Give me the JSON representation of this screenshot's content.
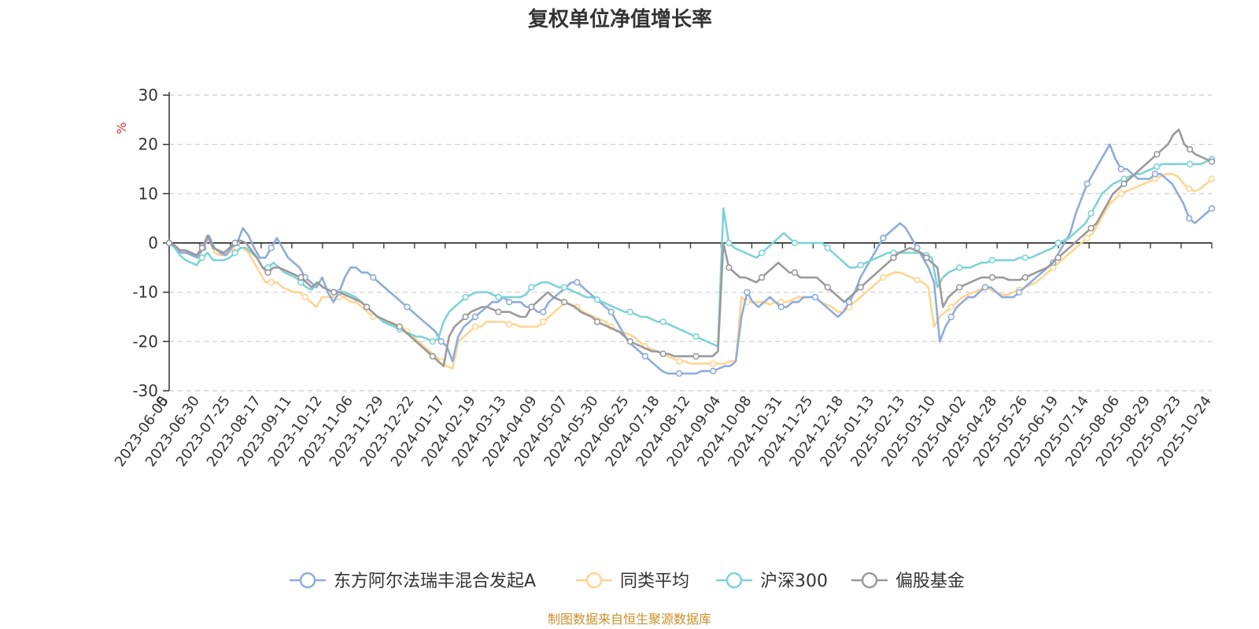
{
  "chart_data": {
    "type": "line",
    "title": "复权单位净值增长率",
    "ylabel": "%",
    "ylim": [
      -30,
      30
    ],
    "yticks": [
      "30",
      "20",
      "10",
      "0",
      "-10",
      "-20",
      "-30"
    ],
    "x_start_label": "0",
    "x_tick_labels": [
      "2023-06-05",
      "2023-06-30",
      "2023-07-25",
      "2023-08-17",
      "2023-09-11",
      "2023-10-12",
      "2023-11-06",
      "2023-11-29",
      "2023-12-22",
      "2024-01-17",
      "2024-02-19",
      "2024-03-13",
      "2024-04-09",
      "2024-05-07",
      "2024-05-30",
      "2024-06-25",
      "2024-07-18",
      "2024-08-12",
      "2024-09-04",
      "2024-10-08",
      "2024-10-31",
      "2024-11-25",
      "2024-12-18",
      "2025-01-13",
      "2025-02-13",
      "2025-03-10",
      "2025-04-02",
      "2025-04-28",
      "2025-05-26",
      "2025-06-19",
      "2025-07-14",
      "2025-08-06",
      "2025-08-29",
      "2025-09-23",
      "2025-10-24"
    ],
    "source": "制图数据来自恒生聚源数据库",
    "series": [
      {
        "name": "东方阿尔法瑞丰混合发起A",
        "color": "#8eacdb",
        "values": [
          0,
          -1,
          -2,
          -2,
          -2.5,
          -3,
          -1,
          1.5,
          -1,
          -2,
          -2.5,
          -1,
          0,
          3,
          1.5,
          -1,
          -3,
          -3,
          -1,
          1,
          -1,
          -3,
          -4,
          -5,
          -7,
          -8,
          -9,
          -7,
          -10,
          -12,
          -10,
          -7,
          -5,
          -5,
          -6,
          -6,
          -7,
          -8,
          -9,
          -10,
          -11,
          -12,
          -13,
          -14,
          -15,
          -16,
          -17,
          -18,
          -20,
          -21,
          -24,
          -19,
          -17,
          -16,
          -15,
          -14,
          -13,
          -12,
          -12,
          -11,
          -12,
          -12,
          -12,
          -13,
          -13,
          -14,
          -14,
          -12,
          -11,
          -10,
          -9,
          -8,
          -8,
          -9,
          -10,
          -11,
          -12,
          -13,
          -14,
          -16,
          -18,
          -20,
          -21,
          -22,
          -23,
          -24,
          -25,
          -26,
          -26.5,
          -26.5,
          -26.5,
          -26.5,
          -26.5,
          -26.5,
          -26,
          -26,
          -26,
          -25.5,
          -25,
          -25,
          -24,
          -15,
          -10,
          -12,
          -13,
          -12,
          -11,
          -12,
          -13,
          -13,
          -12,
          -12,
          -11,
          -11,
          -11,
          -12,
          -13,
          -14,
          -15,
          -14,
          -12,
          -10,
          -7,
          -5,
          -3,
          -1,
          1,
          2,
          3,
          4,
          3,
          1,
          -1,
          -3,
          -5,
          -8,
          -20,
          -17,
          -15,
          -13,
          -12,
          -11,
          -11,
          -10,
          -9,
          -9,
          -10,
          -11,
          -11,
          -11,
          -10,
          -9,
          -8,
          -7,
          -6,
          -5,
          -4,
          -2,
          0,
          2,
          6,
          9,
          12,
          14,
          16,
          18,
          20,
          17,
          15,
          15,
          14,
          13,
          13,
          13,
          14,
          14,
          13,
          12,
          10,
          8,
          5,
          4,
          5,
          6,
          7
        ]
      },
      {
        "name": "同类平均",
        "color": "#ffd591",
        "values": [
          0,
          -1,
          -2,
          -2,
          -2.5,
          -2.5,
          -1,
          1,
          -2,
          -2.5,
          -2.5,
          -1.5,
          -1,
          -1,
          -2,
          -4,
          -6,
          -8,
          -8,
          -8,
          -9,
          -9.5,
          -10,
          -10,
          -11,
          -12,
          -13,
          -11,
          -11,
          -11,
          -11,
          -11,
          -12,
          -12,
          -13,
          -14,
          -15,
          -15,
          -16,
          -16,
          -16.5,
          -17,
          -18,
          -19,
          -20,
          -21,
          -22,
          -23,
          -24,
          -25,
          -25.5,
          -20,
          -19,
          -18,
          -17,
          -17,
          -16,
          -16,
          -16,
          -16,
          -16.5,
          -16.5,
          -17,
          -17,
          -17,
          -17,
          -16,
          -15,
          -14,
          -13,
          -12,
          -12.5,
          -13,
          -14,
          -14.5,
          -15,
          -15.5,
          -16,
          -17,
          -18,
          -18,
          -18.5,
          -19,
          -20,
          -21,
          -21.5,
          -22,
          -22.5,
          -23,
          -23.5,
          -24,
          -24,
          -24.5,
          -24.5,
          -24.5,
          -24.5,
          -24.5,
          -24.5,
          -24.5,
          -24,
          -24,
          -11,
          -12,
          -12,
          -12,
          -12,
          -12.5,
          -12,
          -12,
          -12,
          -11.5,
          -11,
          -11,
          -11,
          -11,
          -12,
          -12.5,
          -13,
          -14,
          -14,
          -13,
          -12,
          -11,
          -10,
          -9,
          -8,
          -7,
          -6.5,
          -6,
          -6,
          -6.5,
          -7,
          -7.5,
          -8,
          -9,
          -17,
          -15,
          -14,
          -13,
          -12,
          -11,
          -10.5,
          -10,
          -9.5,
          -9,
          -9.5,
          -10,
          -10.5,
          -10.5,
          -10,
          -9.5,
          -9,
          -8.5,
          -8,
          -7,
          -6,
          -5,
          -4,
          -3,
          -2,
          -1,
          0,
          1,
          2,
          4,
          6,
          8,
          9,
          10,
          10.5,
          11,
          11.5,
          12,
          12.5,
          13,
          13.5,
          14,
          14,
          13.5,
          12,
          11,
          10.5,
          11,
          12,
          13
        ]
      },
      {
        "name": "沪深300",
        "color": "#7fd3d6",
        "values": [
          0,
          -1,
          -2.5,
          -3.5,
          -4,
          -4.5,
          -3,
          -2,
          -3.5,
          -3.5,
          -3.5,
          -3,
          -2,
          -1,
          -1,
          -2,
          -3,
          -5,
          -5,
          -4,
          -5,
          -6,
          -6.5,
          -7,
          -8,
          -9,
          -9.5,
          -8,
          -9,
          -9.5,
          -10,
          -10,
          -10,
          -10.5,
          -11,
          -12,
          -13,
          -14,
          -15,
          -16,
          -16.5,
          -17,
          -17.5,
          -18,
          -18.5,
          -19,
          -19,
          -19.5,
          -20,
          -19.5,
          -16,
          -14,
          -13,
          -12,
          -11,
          -10.5,
          -10,
          -10,
          -10,
          -10.5,
          -11,
          -11,
          -11,
          -11,
          -11,
          -10.5,
          -9,
          -8.5,
          -8,
          -8,
          -8.5,
          -9,
          -9,
          -9.5,
          -10,
          -10.5,
          -11,
          -11,
          -11.5,
          -12,
          -12.5,
          -13,
          -13.5,
          -14,
          -14,
          -14.5,
          -15,
          -15,
          -15.5,
          -16,
          -16,
          -16.5,
          -17,
          -17.5,
          -18,
          -18.5,
          -19,
          -19.5,
          -20,
          -20.5,
          -21,
          7,
          0,
          -1,
          -1.5,
          -2,
          -2.5,
          -3,
          -2,
          -1,
          0,
          1,
          2,
          1,
          0,
          0,
          0,
          0,
          0,
          0,
          -1,
          -2,
          -3,
          -4,
          -5,
          -5,
          -4.5,
          -4,
          -3.5,
          -3,
          -2.5,
          -2,
          -2,
          -2,
          -2,
          -2,
          -2,
          -2,
          -2.5,
          -3,
          -9,
          -7,
          -6,
          -5.5,
          -5,
          -5,
          -5,
          -4.5,
          -4,
          -4,
          -3.5,
          -3.5,
          -3.5,
          -3.5,
          -3.5,
          -3,
          -3,
          -3,
          -2.5,
          -2,
          -1.5,
          -1,
          0,
          0.5,
          1,
          2,
          3,
          4,
          6,
          8,
          10,
          11,
          12,
          12.5,
          13,
          13.5,
          14,
          14,
          14.5,
          15,
          15.5,
          16,
          16,
          16,
          16,
          16,
          16,
          16,
          16,
          16.5,
          17
        ]
      },
      {
        "name": "偏股基金",
        "color": "#9a9a9a",
        "values": [
          0,
          -0.5,
          -1.5,
          -1.5,
          -2,
          -2.5,
          -1,
          1.5,
          -1,
          -1.5,
          -2,
          -1,
          0,
          0.5,
          0,
          -1.5,
          -3,
          -5,
          -6,
          -5,
          -5,
          -5.5,
          -6,
          -6.5,
          -7,
          -8,
          -9,
          -8,
          -9,
          -9.5,
          -10,
          -10,
          -10.5,
          -11,
          -11.5,
          -12,
          -13,
          -14,
          -15,
          -15.5,
          -16,
          -16.5,
          -17,
          -18,
          -19,
          -20,
          -21,
          -22,
          -23,
          -24,
          -25,
          -19,
          -17,
          -16,
          -15,
          -14,
          -13.5,
          -13,
          -13,
          -13.5,
          -14,
          -14,
          -14,
          -14.5,
          -15,
          -15,
          -13,
          -12,
          -11,
          -10,
          -11,
          -11.5,
          -12,
          -12.5,
          -13,
          -14,
          -14.5,
          -15,
          -16,
          -16.5,
          -17,
          -17.5,
          -18,
          -19,
          -20,
          -20.5,
          -21,
          -21.5,
          -22,
          -22,
          -22.5,
          -22.5,
          -23,
          -23,
          -23,
          -23,
          -23,
          -23,
          -23,
          -23,
          -22,
          0,
          -5,
          -6,
          -7,
          -7,
          -7.5,
          -8,
          -7,
          -6,
          -5,
          -4,
          -5,
          -6,
          -6,
          -7,
          -7,
          -7,
          -7,
          -8,
          -9,
          -10,
          -11,
          -12,
          -11,
          -10,
          -9,
          -8,
          -7,
          -6,
          -5,
          -4,
          -3,
          -2,
          -1.5,
          -1,
          -1.5,
          -2,
          -3,
          -4,
          -5,
          -13,
          -11,
          -10,
          -9,
          -8.5,
          -8,
          -7.5,
          -7,
          -7,
          -7,
          -7,
          -7,
          -7.5,
          -7.5,
          -7.5,
          -7,
          -6.5,
          -6,
          -5.5,
          -5,
          -4,
          -3,
          -2,
          -1,
          0,
          1,
          2,
          3,
          4,
          6,
          8,
          10,
          11,
          12,
          13,
          14,
          15,
          16,
          17,
          18,
          19,
          20,
          22,
          23,
          20,
          19,
          18,
          17.5,
          17,
          16.5
        ]
      }
    ]
  }
}
